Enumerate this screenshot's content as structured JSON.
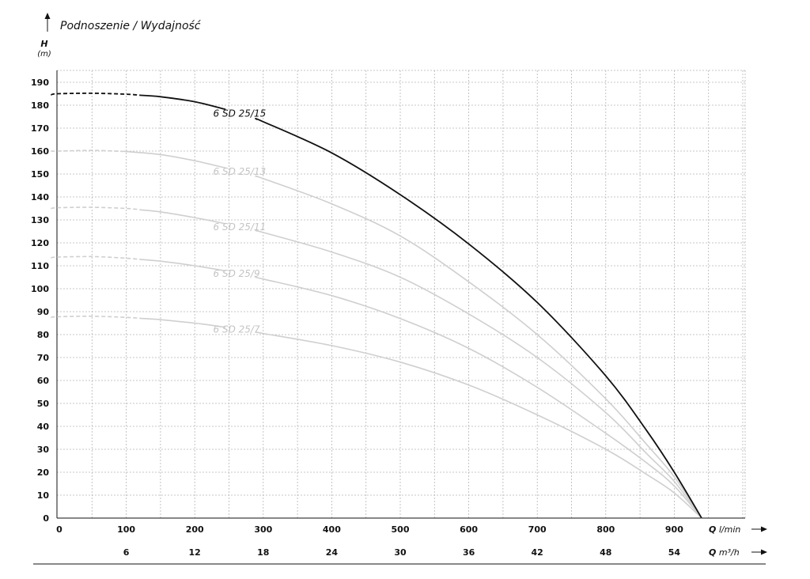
{
  "chart_data": {
    "type": "line",
    "title": "Podnoszenie / Wydajność",
    "ylabel": "H",
    "yunit": "(m)",
    "xlabel_primary": "Q",
    "xunit_primary": "l/min",
    "xlabel_secondary": "Q",
    "xunit_secondary": "m³/h",
    "xlim": [
      0,
      1000
    ],
    "ylim": [
      0,
      195
    ],
    "yticks": [
      0,
      10,
      20,
      30,
      40,
      50,
      60,
      70,
      80,
      90,
      100,
      110,
      120,
      130,
      140,
      150,
      160,
      170,
      180,
      190
    ],
    "xticks_primary": [
      0,
      100,
      200,
      300,
      400,
      500,
      600,
      700,
      800,
      900
    ],
    "xticks_secondary": [
      6,
      12,
      18,
      24,
      30,
      36,
      42,
      48,
      54
    ],
    "secondary_factor": 16.6667,
    "grid": true,
    "series": [
      {
        "name": "6 SD 25/15",
        "color": "#111111",
        "highlight": true,
        "dashed_until": 120,
        "label_at": 220,
        "points": [
          [
            -10,
            184.5
          ],
          [
            0,
            185
          ],
          [
            50,
            185.2
          ],
          [
            100,
            184.8
          ],
          [
            150,
            183.7
          ],
          [
            200,
            181.5
          ],
          [
            250,
            177.8
          ],
          [
            300,
            172.8
          ],
          [
            400,
            159.2
          ],
          [
            500,
            141
          ],
          [
            600,
            119.5
          ],
          [
            700,
            94
          ],
          [
            800,
            62
          ],
          [
            860,
            38
          ],
          [
            900,
            20
          ],
          [
            940,
            0
          ]
        ]
      },
      {
        "name": "6 SD 25/13",
        "color": "#cfcfcf",
        "highlight": false,
        "dashed_until": 95,
        "label_at": 220,
        "points": [
          [
            -10,
            160
          ],
          [
            0,
            160
          ],
          [
            50,
            160.3
          ],
          [
            100,
            159.8
          ],
          [
            150,
            158.5
          ],
          [
            200,
            155.8
          ],
          [
            250,
            152.3
          ],
          [
            300,
            148
          ],
          [
            400,
            137
          ],
          [
            500,
            123
          ],
          [
            600,
            103
          ],
          [
            700,
            80
          ],
          [
            800,
            52
          ],
          [
            860,
            32
          ],
          [
            900,
            18
          ],
          [
            940,
            0
          ]
        ]
      },
      {
        "name": "6 SD 25/11",
        "color": "#cfcfcf",
        "highlight": false,
        "dashed_until": 120,
        "label_at": 220,
        "points": [
          [
            -10,
            135
          ],
          [
            0,
            135.3
          ],
          [
            50,
            135.5
          ],
          [
            100,
            135
          ],
          [
            150,
            133.5
          ],
          [
            200,
            131
          ],
          [
            250,
            128
          ],
          [
            300,
            124.5
          ],
          [
            400,
            116
          ],
          [
            500,
            105
          ],
          [
            600,
            89
          ],
          [
            700,
            70
          ],
          [
            800,
            46
          ],
          [
            860,
            28
          ],
          [
            900,
            16
          ],
          [
            940,
            0
          ]
        ]
      },
      {
        "name": "6 SD 25/9",
        "color": "#cfcfcf",
        "highlight": false,
        "dashed_until": 120,
        "label_at": 220,
        "points": [
          [
            -10,
            113.5
          ],
          [
            0,
            113.8
          ],
          [
            50,
            114
          ],
          [
            100,
            113.3
          ],
          [
            150,
            112
          ],
          [
            200,
            110
          ],
          [
            250,
            107.5
          ],
          [
            300,
            104.2
          ],
          [
            400,
            97
          ],
          [
            500,
            87
          ],
          [
            600,
            74
          ],
          [
            700,
            57
          ],
          [
            800,
            37
          ],
          [
            860,
            24
          ],
          [
            900,
            14
          ],
          [
            940,
            0
          ]
        ]
      },
      {
        "name": "6 SD 25/7",
        "color": "#cfcfcf",
        "highlight": false,
        "dashed_until": 120,
        "label_at": 220,
        "points": [
          [
            -10,
            87.5
          ],
          [
            0,
            87.8
          ],
          [
            50,
            88
          ],
          [
            100,
            87.5
          ],
          [
            150,
            86.5
          ],
          [
            200,
            85
          ],
          [
            250,
            83
          ],
          [
            300,
            80.5
          ],
          [
            400,
            75.2
          ],
          [
            500,
            68
          ],
          [
            600,
            58
          ],
          [
            700,
            45
          ],
          [
            800,
            30
          ],
          [
            860,
            19
          ],
          [
            900,
            11
          ],
          [
            940,
            0
          ]
        ]
      }
    ]
  }
}
